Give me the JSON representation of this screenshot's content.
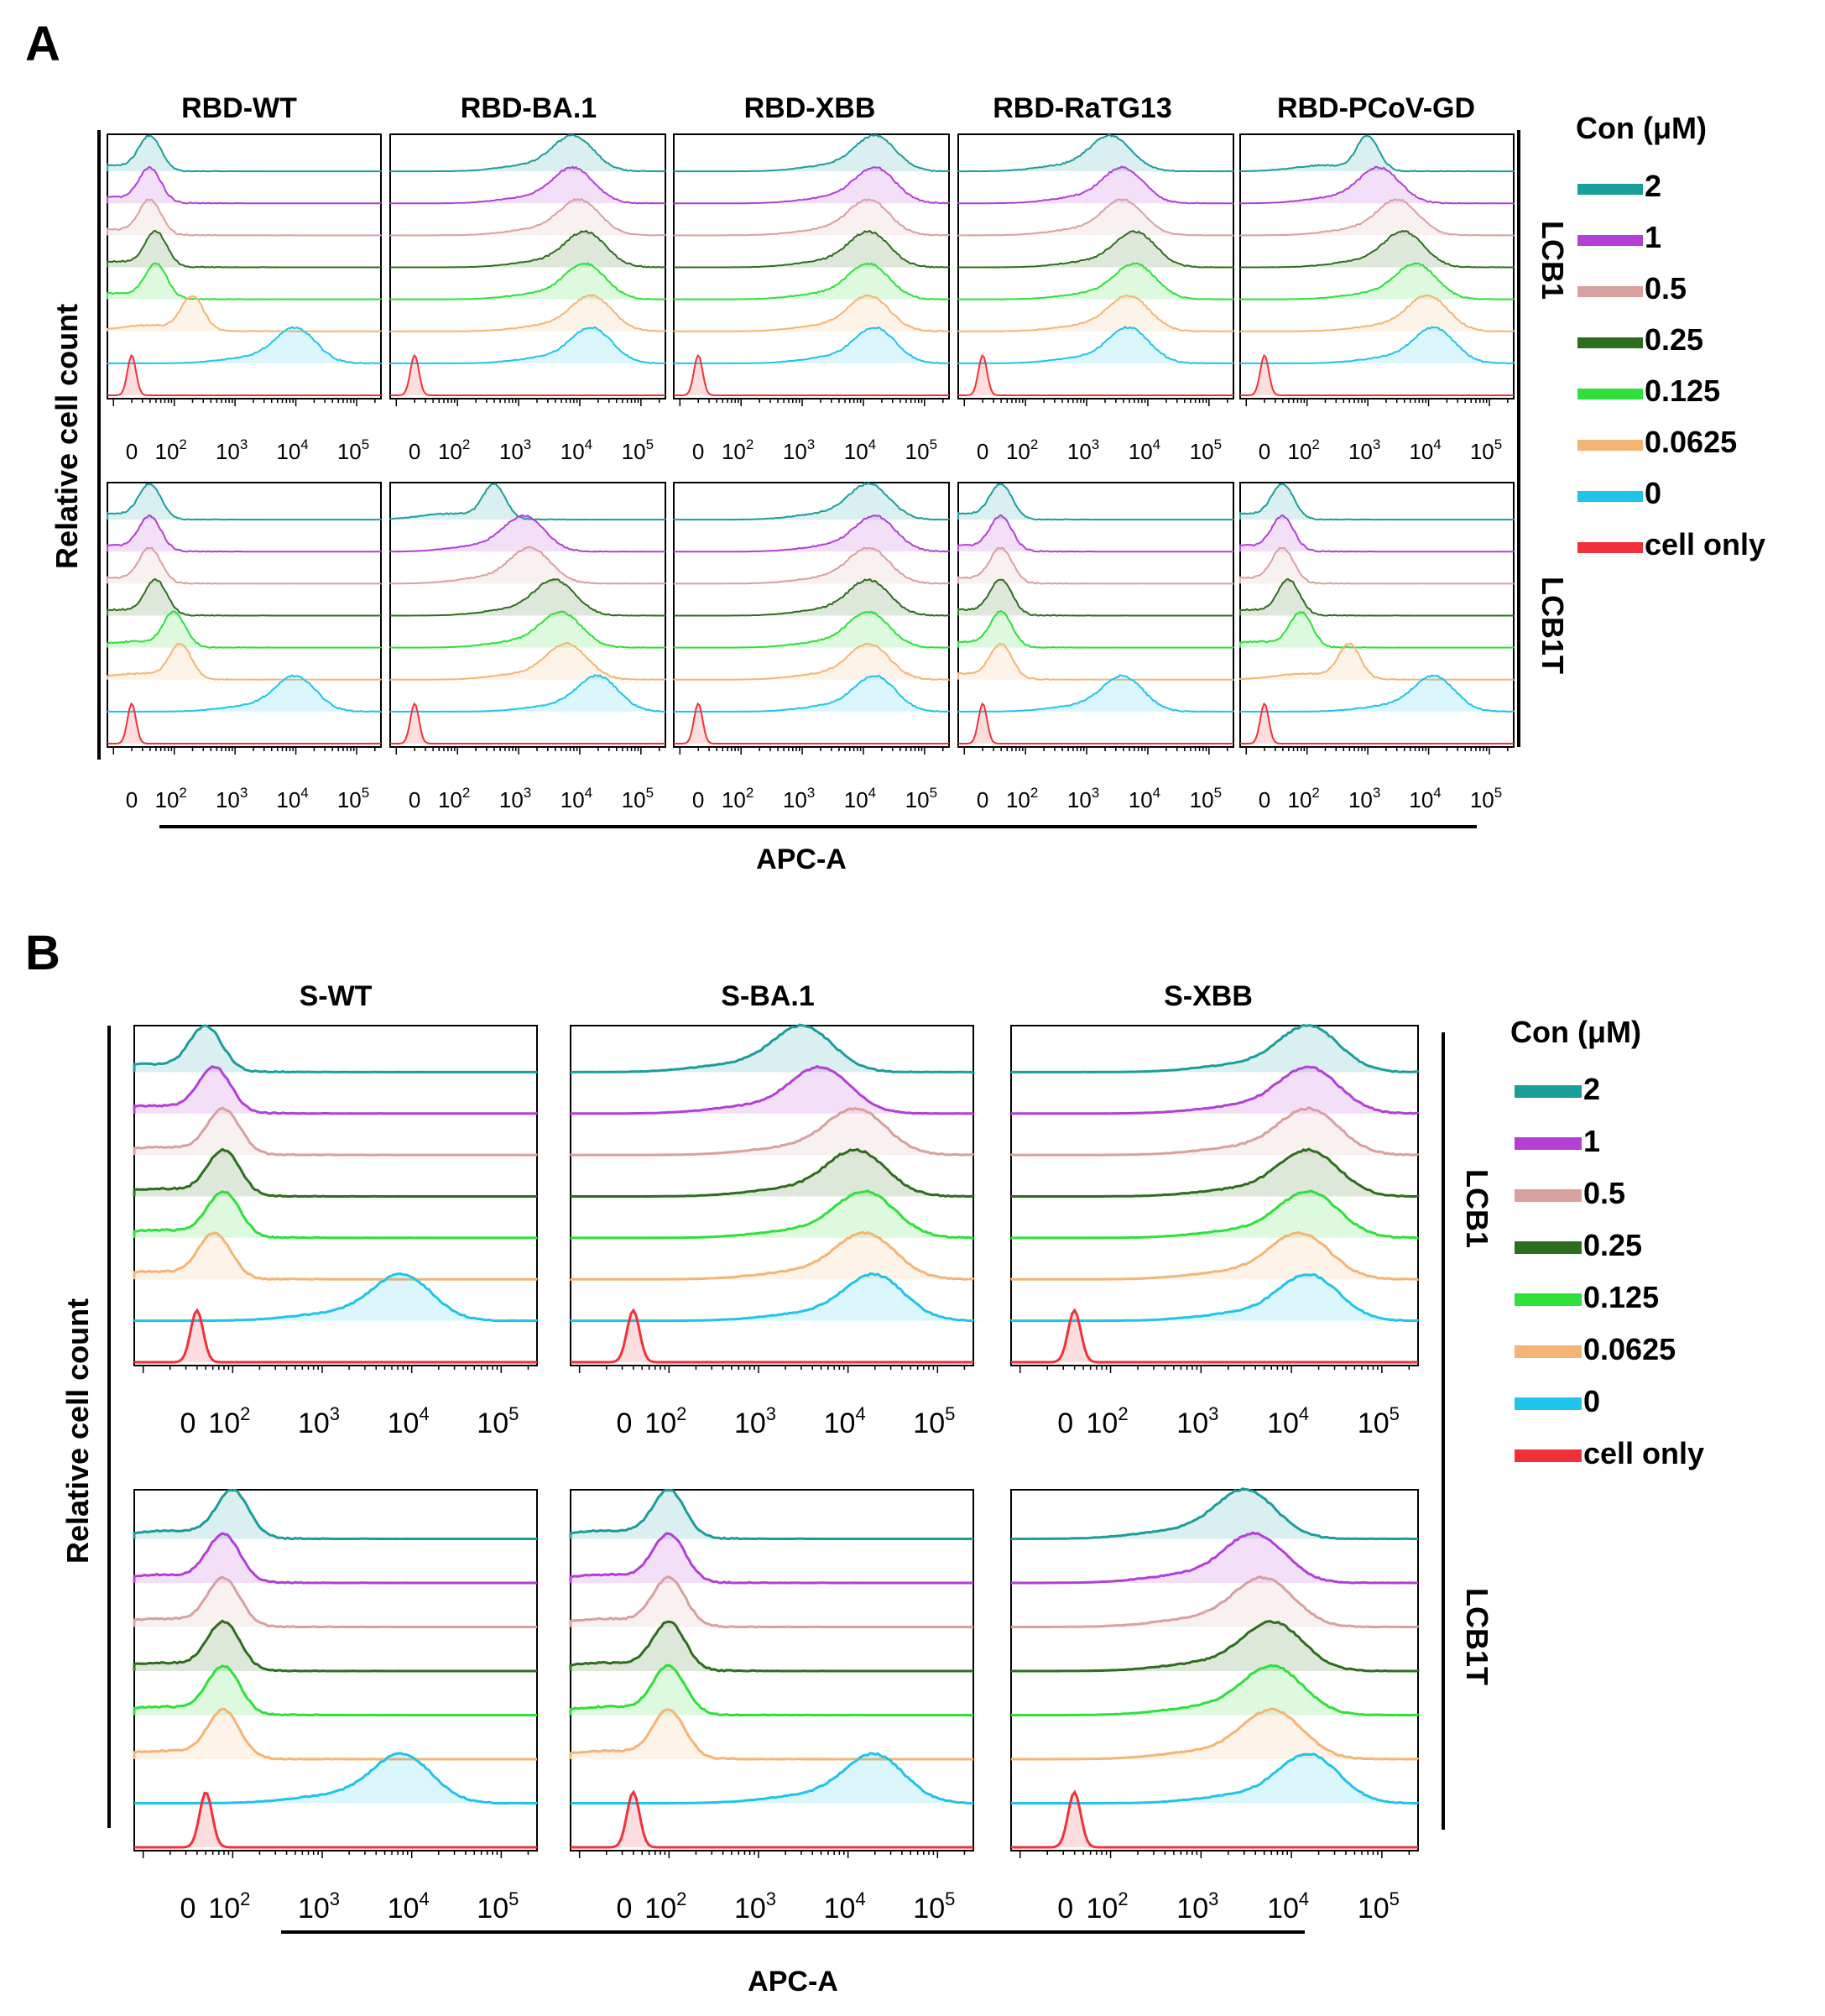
{
  "figure": {
    "panel_a_label": "A",
    "panel_b_label": "B",
    "y_axis_label": "Relative cell count",
    "x_axis_label": "APC-A",
    "legend_title": "Con (μM)",
    "row_labels": [
      "LCB1",
      "LCB1T"
    ],
    "tick_labels": [
      "0",
      "10",
      "10",
      "10",
      "10"
    ],
    "tick_exponents": [
      "",
      "2",
      "3",
      "4",
      "5"
    ]
  },
  "colors": {
    "2": "#1a9e9a",
    "1": "#b33fd6",
    "0.5": "#d9a0a0",
    "0.25": "#2d6e1e",
    "0.125": "#2ee03a",
    "0.0625": "#f5b473",
    "0": "#1fc4ea",
    "cell only": "#f2303a"
  },
  "chart_data": [
    {
      "panel": "A",
      "type": "histogram-overlay",
      "x_scale": "log (APC-A)",
      "xlabel": "APC-A",
      "ylabel": "Relative cell count",
      "legend_title": "Con (μM)",
      "concentrations": [
        "2",
        "1",
        "0.5",
        "0.25",
        "0.125",
        "0.0625",
        "0",
        "cell only"
      ],
      "columns": [
        "RBD-WT",
        "RBD-BA.1",
        "RBD-XBB",
        "RBD-RaTG13",
        "RBD-PCoV-GD"
      ],
      "rows": [
        "LCB1",
        "LCB1T"
      ],
      "peak_log10_values": {
        "LCB1": {
          "RBD-WT": [
            1.6,
            1.6,
            1.6,
            1.7,
            1.7,
            2.3,
            4.0,
            1.3
          ],
          "RBD-BA.1": [
            3.9,
            3.9,
            4.0,
            4.1,
            4.1,
            4.2,
            4.2,
            1.3
          ],
          "RBD-XBB": [
            4.2,
            4.2,
            4.1,
            4.1,
            4.1,
            4.1,
            4.2,
            1.3
          ],
          "RBD-RaTG13": [
            3.4,
            3.6,
            3.6,
            3.8,
            3.8,
            3.7,
            3.7,
            1.3
          ],
          "RBD-PCoV-GD": [
            3.0,
            3.2,
            3.5,
            3.6,
            3.8,
            4.0,
            4.1,
            1.3
          ]
        },
        "LCB1T": {
          "RBD-WT": [
            1.6,
            1.6,
            1.6,
            1.7,
            2.0,
            2.1,
            4.0,
            1.3
          ],
          "RBD-BA.1": [
            2.6,
            3.1,
            3.2,
            3.6,
            3.7,
            3.8,
            4.3,
            1.3
          ],
          "RBD-XBB": [
            4.1,
            4.2,
            4.1,
            4.1,
            4.1,
            4.1,
            4.2,
            1.3
          ],
          "RBD-RaTG13": [
            1.6,
            1.6,
            1.6,
            1.6,
            1.6,
            1.6,
            3.6,
            1.3
          ],
          "RBD-PCoV-GD": [
            1.6,
            1.6,
            1.6,
            1.7,
            1.9,
            2.7,
            4.1,
            1.3
          ]
        }
      }
    },
    {
      "panel": "B",
      "type": "histogram-overlay",
      "x_scale": "log (APC-A)",
      "xlabel": "APC-A",
      "ylabel": "Relative cell count",
      "legend_title": "Con (μM)",
      "concentrations": [
        "2",
        "1",
        "0.5",
        "0.25",
        "0.125",
        "0.0625",
        "0",
        "cell only"
      ],
      "columns": [
        "S-WT",
        "S-BA.1",
        "S-XBB"
      ],
      "rows": [
        "LCB1",
        "LCB1T"
      ],
      "peak_log10_values": {
        "LCB1": {
          "S-WT": [
            1.7,
            1.8,
            1.9,
            1.9,
            1.9,
            1.8,
            3.9,
            1.6
          ],
          "S-BA.1": [
            3.5,
            3.7,
            4.1,
            4.1,
            4.2,
            4.2,
            4.3,
            1.6
          ],
          "S-XBB": [
            4.2,
            4.2,
            4.2,
            4.2,
            4.2,
            4.1,
            4.2,
            1.6
          ]
        },
        "LCB1T": {
          "S-WT": [
            2.0,
            1.9,
            1.9,
            1.9,
            1.9,
            1.9,
            3.9,
            1.7
          ],
          "S-BA.1": [
            2.0,
            2.0,
            2.0,
            2.0,
            2.0,
            2.0,
            4.3,
            1.6
          ],
          "S-XBB": [
            3.5,
            3.6,
            3.7,
            3.8,
            3.8,
            3.8,
            4.2,
            1.6
          ]
        }
      }
    }
  ]
}
